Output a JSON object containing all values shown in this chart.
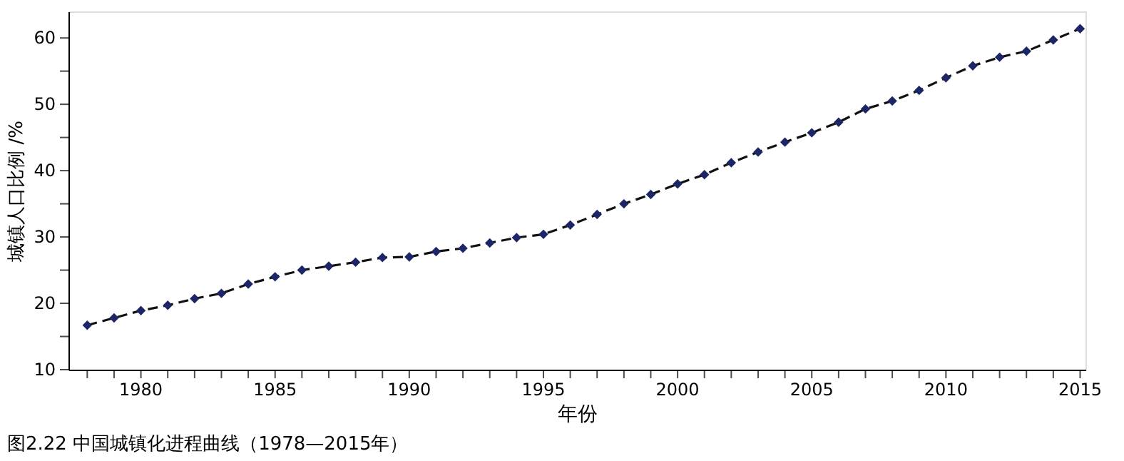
{
  "chart_data": {
    "type": "line",
    "xlabel": "年份",
    "ylabel": "城镇人口比例 /%",
    "annotations": [
      "图2.22  中国城镇化进程曲线（1978—2015年）"
    ],
    "x": [
      1978,
      1979,
      1980,
      1981,
      1982,
      1983,
      1984,
      1985,
      1986,
      1987,
      1988,
      1989,
      1990,
      1991,
      1992,
      1993,
      1994,
      1995,
      1996,
      1997,
      1998,
      1999,
      2000,
      2001,
      2002,
      2003,
      2004,
      2005,
      2006,
      2007,
      2008,
      2009,
      2010,
      2011,
      2012,
      2013,
      2014,
      2015
    ],
    "series": [
      {
        "color": "#1c2566",
        "values": [
          16.7,
          17.8,
          18.9,
          19.7,
          20.7,
          21.5,
          22.9,
          24.0,
          25.0,
          25.6,
          26.2,
          26.9,
          27.0,
          27.8,
          28.3,
          29.1,
          29.9,
          30.4,
          31.8,
          33.4,
          35.0,
          36.4,
          38.0,
          39.4,
          41.2,
          42.8,
          44.3,
          45.7,
          47.3,
          49.3,
          50.5,
          52.1,
          54.0,
          55.8,
          57.1,
          58.0,
          59.7,
          61.4
        ]
      }
    ],
    "xlim": [
      1977.3,
      2015.2
    ],
    "xticks": [
      {
        "value": 1978,
        "label": null
      },
      {
        "value": 1979,
        "label": null
      },
      1980,
      {
        "value": 1981,
        "label": null
      },
      {
        "value": 1982,
        "label": null
      },
      {
        "value": 1983,
        "label": null
      },
      {
        "value": 1984,
        "label": null
      },
      1985,
      {
        "value": 1986,
        "label": null
      },
      {
        "value": 1987,
        "label": null
      },
      {
        "value": 1988,
        "label": null
      },
      {
        "value": 1989,
        "label": null
      },
      1990,
      {
        "value": 1991,
        "label": null
      },
      {
        "value": 1992,
        "label": null
      },
      {
        "value": 1993,
        "label": null
      },
      {
        "value": 1994,
        "label": null
      },
      1995,
      {
        "value": 1996,
        "label": null
      },
      {
        "value": 1997,
        "label": null
      },
      {
        "value": 1998,
        "label": null
      },
      {
        "value": 1999,
        "label": null
      },
      2000,
      {
        "value": 2001,
        "label": null
      },
      {
        "value": 2002,
        "label": null
      },
      {
        "value": 2003,
        "label": null
      },
      {
        "value": 2004,
        "label": null
      },
      2005,
      {
        "value": 2006,
        "label": null
      },
      {
        "value": 2007,
        "label": null
      },
      {
        "value": 2008,
        "label": null
      },
      {
        "value": 2009,
        "label": null
      },
      2010,
      {
        "value": 2011,
        "label": null
      },
      {
        "value": 2012,
        "label": null
      },
      {
        "value": 2013,
        "label": null
      },
      {
        "value": 2014,
        "label": null
      },
      2015
    ],
    "ylim": [
      10,
      64
    ],
    "yticks": [
      10,
      {
        "value": 15,
        "label": null
      },
      20,
      {
        "value": 25,
        "label": null
      },
      30,
      {
        "value": 35,
        "label": null
      },
      40,
      {
        "value": 45,
        "label": null
      },
      50,
      {
        "value": 55,
        "label": null
      },
      60
    ],
    "marker": "diamond",
    "line_style": "dashed",
    "grid": false,
    "legend": false
  }
}
